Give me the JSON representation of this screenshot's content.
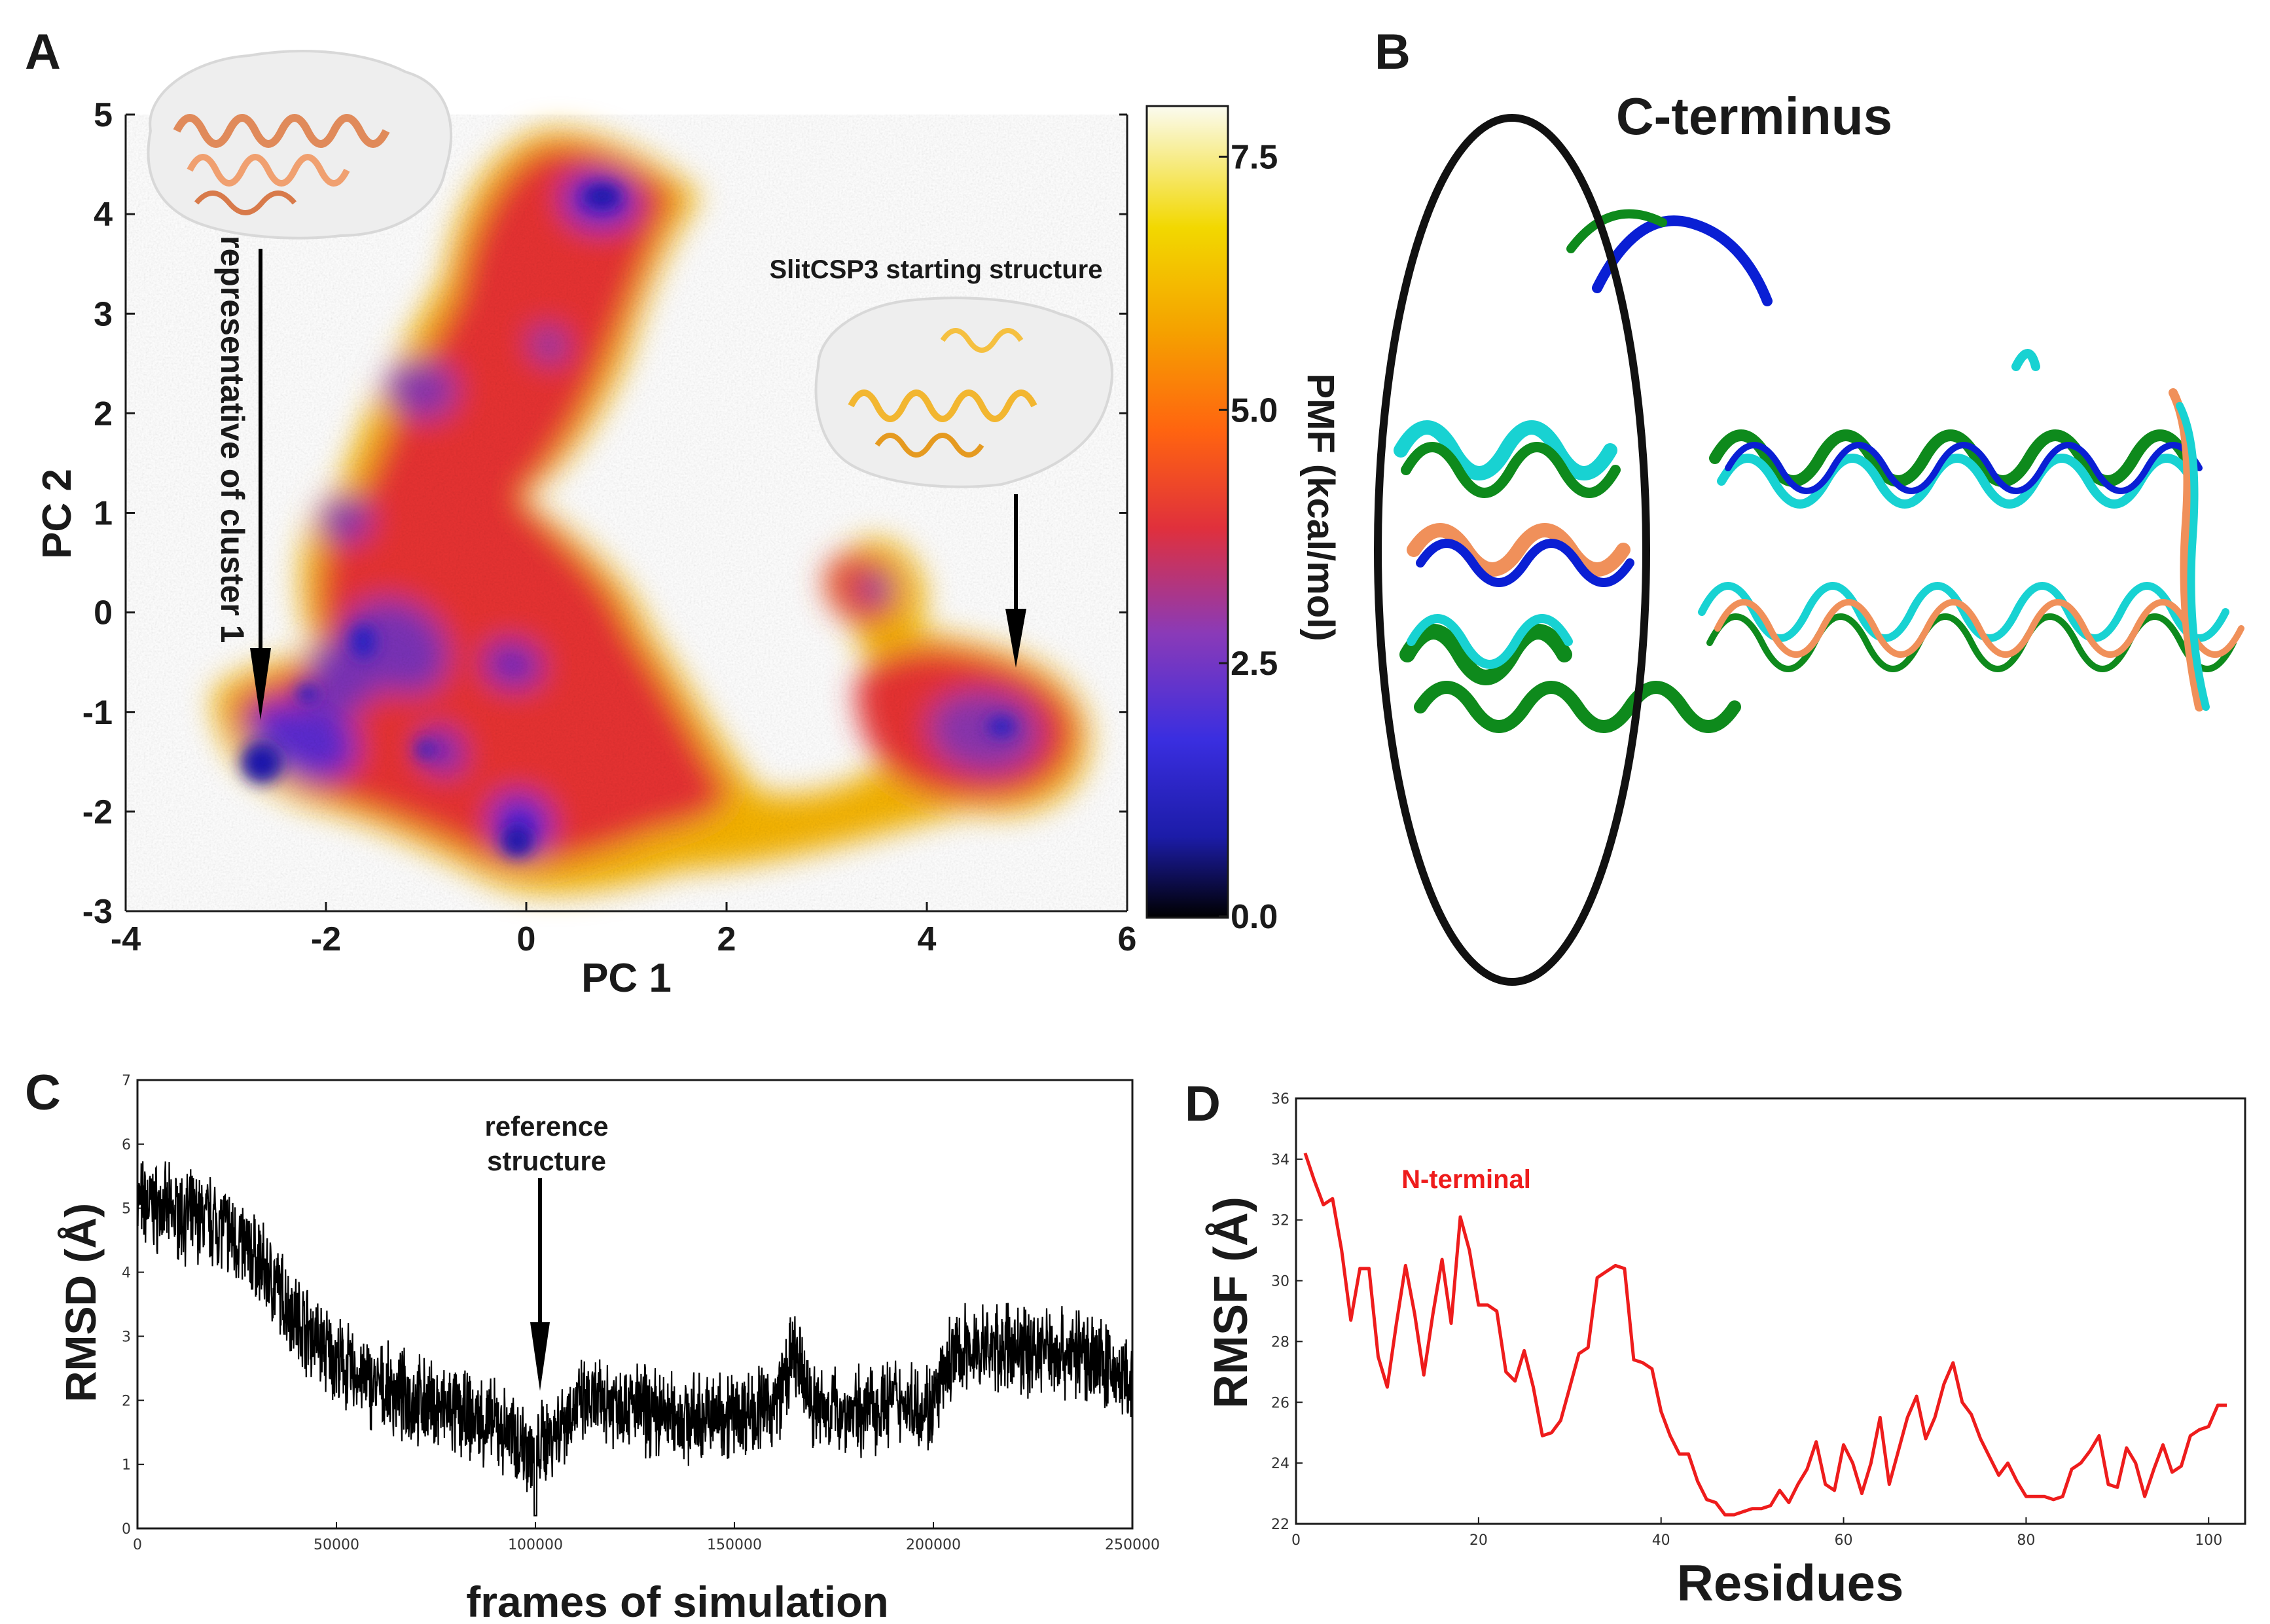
{
  "chart_data": [
    {
      "panel": "A",
      "type": "heatmap",
      "xlabel": "PC 1",
      "ylabel": "PC 2",
      "xlim": [
        -4,
        6
      ],
      "ylim": [
        -3,
        5
      ],
      "xticks": [
        "-4",
        "-2",
        "0",
        "2",
        "4",
        "6"
      ],
      "yticks": [
        "-3",
        "-2",
        "-1",
        "0",
        "1",
        "2",
        "3",
        "4",
        "5"
      ],
      "colorbar": {
        "label": "PMF (kcal/mol)",
        "range": [
          0.0,
          8.0
        ],
        "ticks": [
          "0.0",
          "2.5",
          "5.0",
          "7.5"
        ],
        "colors": [
          "#000000",
          "#1c1ca8",
          "#5a34d8",
          "#9f3ca8",
          "#e83a4a",
          "#ff6a10",
          "#f5a800",
          "#f2d400",
          "#fbfbf2"
        ]
      },
      "minima": [
        {
          "x": -2.7,
          "y": -1.45,
          "pmf": 0.3
        },
        {
          "x": 0.0,
          "y": -2.2,
          "pmf": 0.5
        },
        {
          "x": -1.6,
          "y": -0.3,
          "pmf": 0.8
        },
        {
          "x": 0.7,
          "y": 4.2,
          "pmf": 0.6
        },
        {
          "x": 4.9,
          "y": -1.1,
          "pmf": 1.2
        },
        {
          "x": 3.5,
          "y": 0.2,
          "pmf": 1.5
        }
      ],
      "annotations": [
        {
          "text": "representative of cluster 1",
          "x": -2.65,
          "y": -1.45
        },
        {
          "text": "SlitCSP3 starting structure",
          "x": 4.95,
          "y": -0.6
        }
      ]
    },
    {
      "panel": "C",
      "type": "line",
      "xlabel": "frames of simulation",
      "ylabel": "RMSD (Å)",
      "xlim": [
        0,
        250000
      ],
      "ylim": [
        0,
        7
      ],
      "xticks": [
        "0",
        "50000",
        "100000",
        "150000",
        "200000",
        "250000"
      ],
      "yticks": [
        "0",
        "1",
        "2",
        "3",
        "4",
        "5",
        "6",
        "7"
      ],
      "color": "#000000",
      "series": [
        {
          "name": "RMSD",
          "x": [
            0,
            10000,
            20000,
            30000,
            40000,
            50000,
            60000,
            70000,
            80000,
            90000,
            100000,
            110000,
            120000,
            130000,
            140000,
            150000,
            160000,
            165000,
            170000,
            180000,
            190000,
            200000,
            205000,
            210000,
            220000,
            230000,
            240000,
            250000
          ],
          "values": [
            5.1,
            4.9,
            4.8,
            4.2,
            3.3,
            2.6,
            2.2,
            2.0,
            1.8,
            1.6,
            1.2,
            1.9,
            2.0,
            1.8,
            1.7,
            1.8,
            1.9,
            2.7,
            1.9,
            1.8,
            2.0,
            1.9,
            2.7,
            2.8,
            2.8,
            2.8,
            2.7,
            2.2
          ]
        }
      ],
      "annotation": {
        "text": [
          "reference",
          "structure"
        ],
        "x": 100000,
        "y": 2.8
      }
    },
    {
      "panel": "D",
      "type": "line",
      "xlabel": "Residues",
      "ylabel": "RMSF (Å)",
      "xlim": [
        0,
        104
      ],
      "ylim": [
        22,
        36
      ],
      "xticks": [
        "0",
        "20",
        "40",
        "60",
        "80",
        "100"
      ],
      "yticks": [
        "22",
        "24",
        "26",
        "28",
        "30",
        "32",
        "34",
        "36"
      ],
      "color": "#ee1c1c",
      "series": [
        {
          "name": "RMSF",
          "x": [
            1,
            2,
            3,
            4,
            5,
            6,
            7,
            8,
            9,
            10,
            11,
            12,
            13,
            14,
            15,
            16,
            17,
            18,
            19,
            20,
            21,
            22,
            23,
            24,
            25,
            26,
            27,
            28,
            29,
            30,
            31,
            32,
            33,
            34,
            35,
            36,
            37,
            38,
            39,
            40,
            41,
            42,
            43,
            44,
            45,
            46,
            47,
            48,
            49,
            50,
            51,
            52,
            53,
            54,
            55,
            56,
            57,
            58,
            59,
            60,
            61,
            62,
            63,
            64,
            65,
            66,
            67,
            68,
            69,
            70,
            71,
            72,
            73,
            74,
            75,
            76,
            77,
            78,
            79,
            80,
            81,
            82,
            83,
            84,
            85,
            86,
            87,
            88,
            89,
            90,
            91,
            92,
            93,
            94,
            95,
            96,
            97,
            98,
            99,
            100,
            101,
            102
          ],
          "values": [
            34.2,
            33.3,
            32.5,
            32.7,
            31.0,
            28.7,
            30.4,
            30.4,
            27.5,
            26.5,
            28.6,
            30.5,
            28.9,
            26.9,
            28.9,
            30.7,
            28.6,
            32.1,
            31.0,
            29.2,
            29.2,
            29.0,
            27.0,
            26.7,
            27.7,
            26.5,
            24.9,
            25.0,
            25.4,
            26.5,
            27.6,
            27.8,
            30.1,
            30.3,
            30.5,
            30.4,
            27.4,
            27.3,
            27.1,
            25.7,
            24.9,
            24.3,
            24.3,
            23.4,
            22.8,
            22.7,
            22.3,
            22.3,
            22.4,
            22.5,
            22.5,
            22.6,
            23.1,
            22.7,
            23.3,
            23.8,
            24.7,
            23.3,
            23.1,
            24.6,
            24.0,
            23.0,
            24.0,
            25.5,
            23.3,
            24.4,
            25.5,
            26.2,
            24.8,
            25.5,
            26.6,
            27.3,
            26.0,
            25.6,
            24.8,
            24.2,
            23.6,
            24.0,
            23.4,
            22.9,
            22.9,
            22.9,
            22.8,
            22.9,
            23.8,
            24.0,
            24.4,
            24.9,
            23.3,
            23.2,
            24.5,
            24.0,
            22.9,
            23.8,
            24.6,
            23.7,
            23.9,
            24.9,
            25.1,
            25.2,
            25.9,
            25.9
          ]
        }
      ],
      "annotation": {
        "text": "N-terminal",
        "x": 18,
        "y": 33.2
      }
    }
  ],
  "panels": {
    "a": {
      "letter": "A"
    },
    "b": {
      "letter": "B",
      "title": "C-terminus"
    },
    "c": {
      "letter": "C"
    },
    "d": {
      "letter": "D"
    }
  },
  "colors": {
    "ribbon_colors": [
      "#0a1fd4",
      "#0e8a1c",
      "#18d2d2",
      "#f0905a",
      "#ffffff"
    ],
    "structure_orange": "#f4a070",
    "structure_gold": "#f2b630"
  }
}
